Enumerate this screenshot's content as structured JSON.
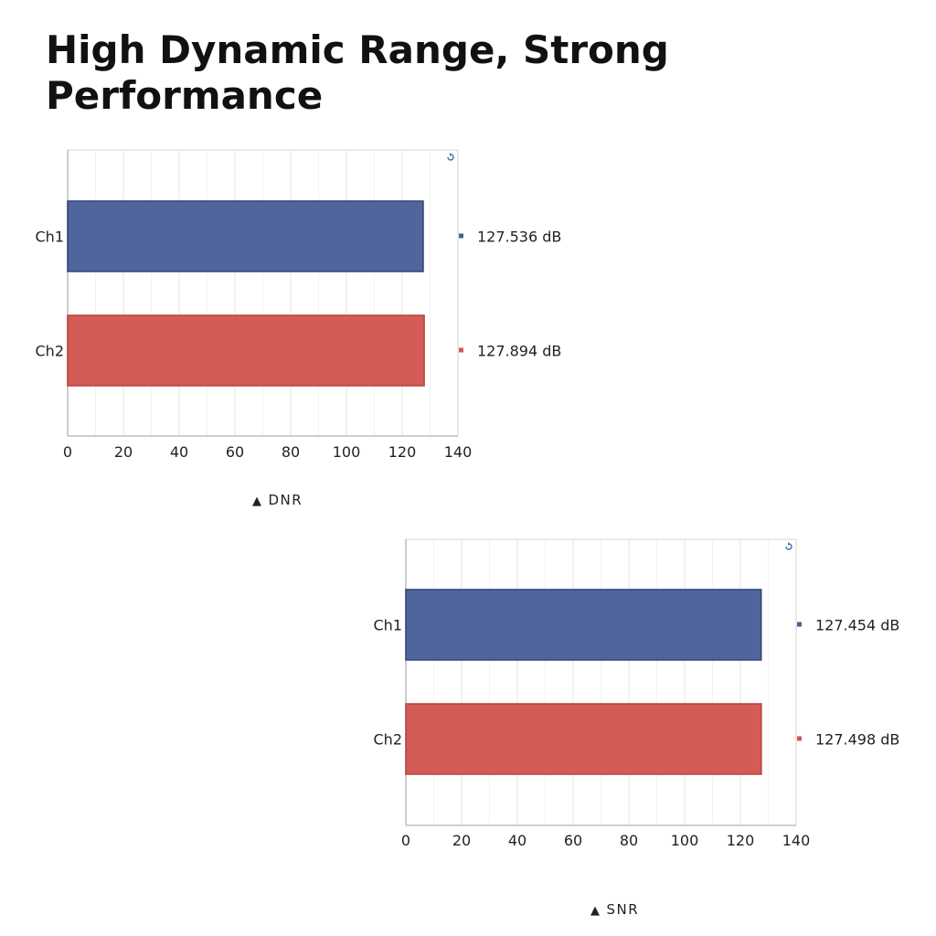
{
  "page": {
    "title": "High Dynamic Range, Strong Performance"
  },
  "chart_data": [
    {
      "type": "bar",
      "orientation": "horizontal",
      "caption": "DNR",
      "categories": [
        "Ch1",
        "Ch2"
      ],
      "values": [
        127.536,
        127.894
      ],
      "data_labels": [
        "127.536 dB",
        "127.894 dB"
      ],
      "bar_colors": [
        "#4a5f9a",
        "#d25752"
      ],
      "xlim": [
        0,
        140
      ],
      "xticks": [
        0,
        20,
        40,
        60,
        80,
        100,
        120,
        140
      ],
      "grid": true,
      "legend": "right"
    },
    {
      "type": "bar",
      "orientation": "horizontal",
      "caption": "SNR",
      "categories": [
        "Ch1",
        "Ch2"
      ],
      "values": [
        127.454,
        127.498
      ],
      "data_labels": [
        "127.454 dB",
        "127.498 dB"
      ],
      "bar_colors": [
        "#4a5f9a",
        "#d25752"
      ],
      "xlim": [
        0,
        140
      ],
      "xticks": [
        0,
        20,
        40,
        60,
        80,
        100,
        120,
        140
      ],
      "grid": true,
      "legend": "right"
    }
  ]
}
